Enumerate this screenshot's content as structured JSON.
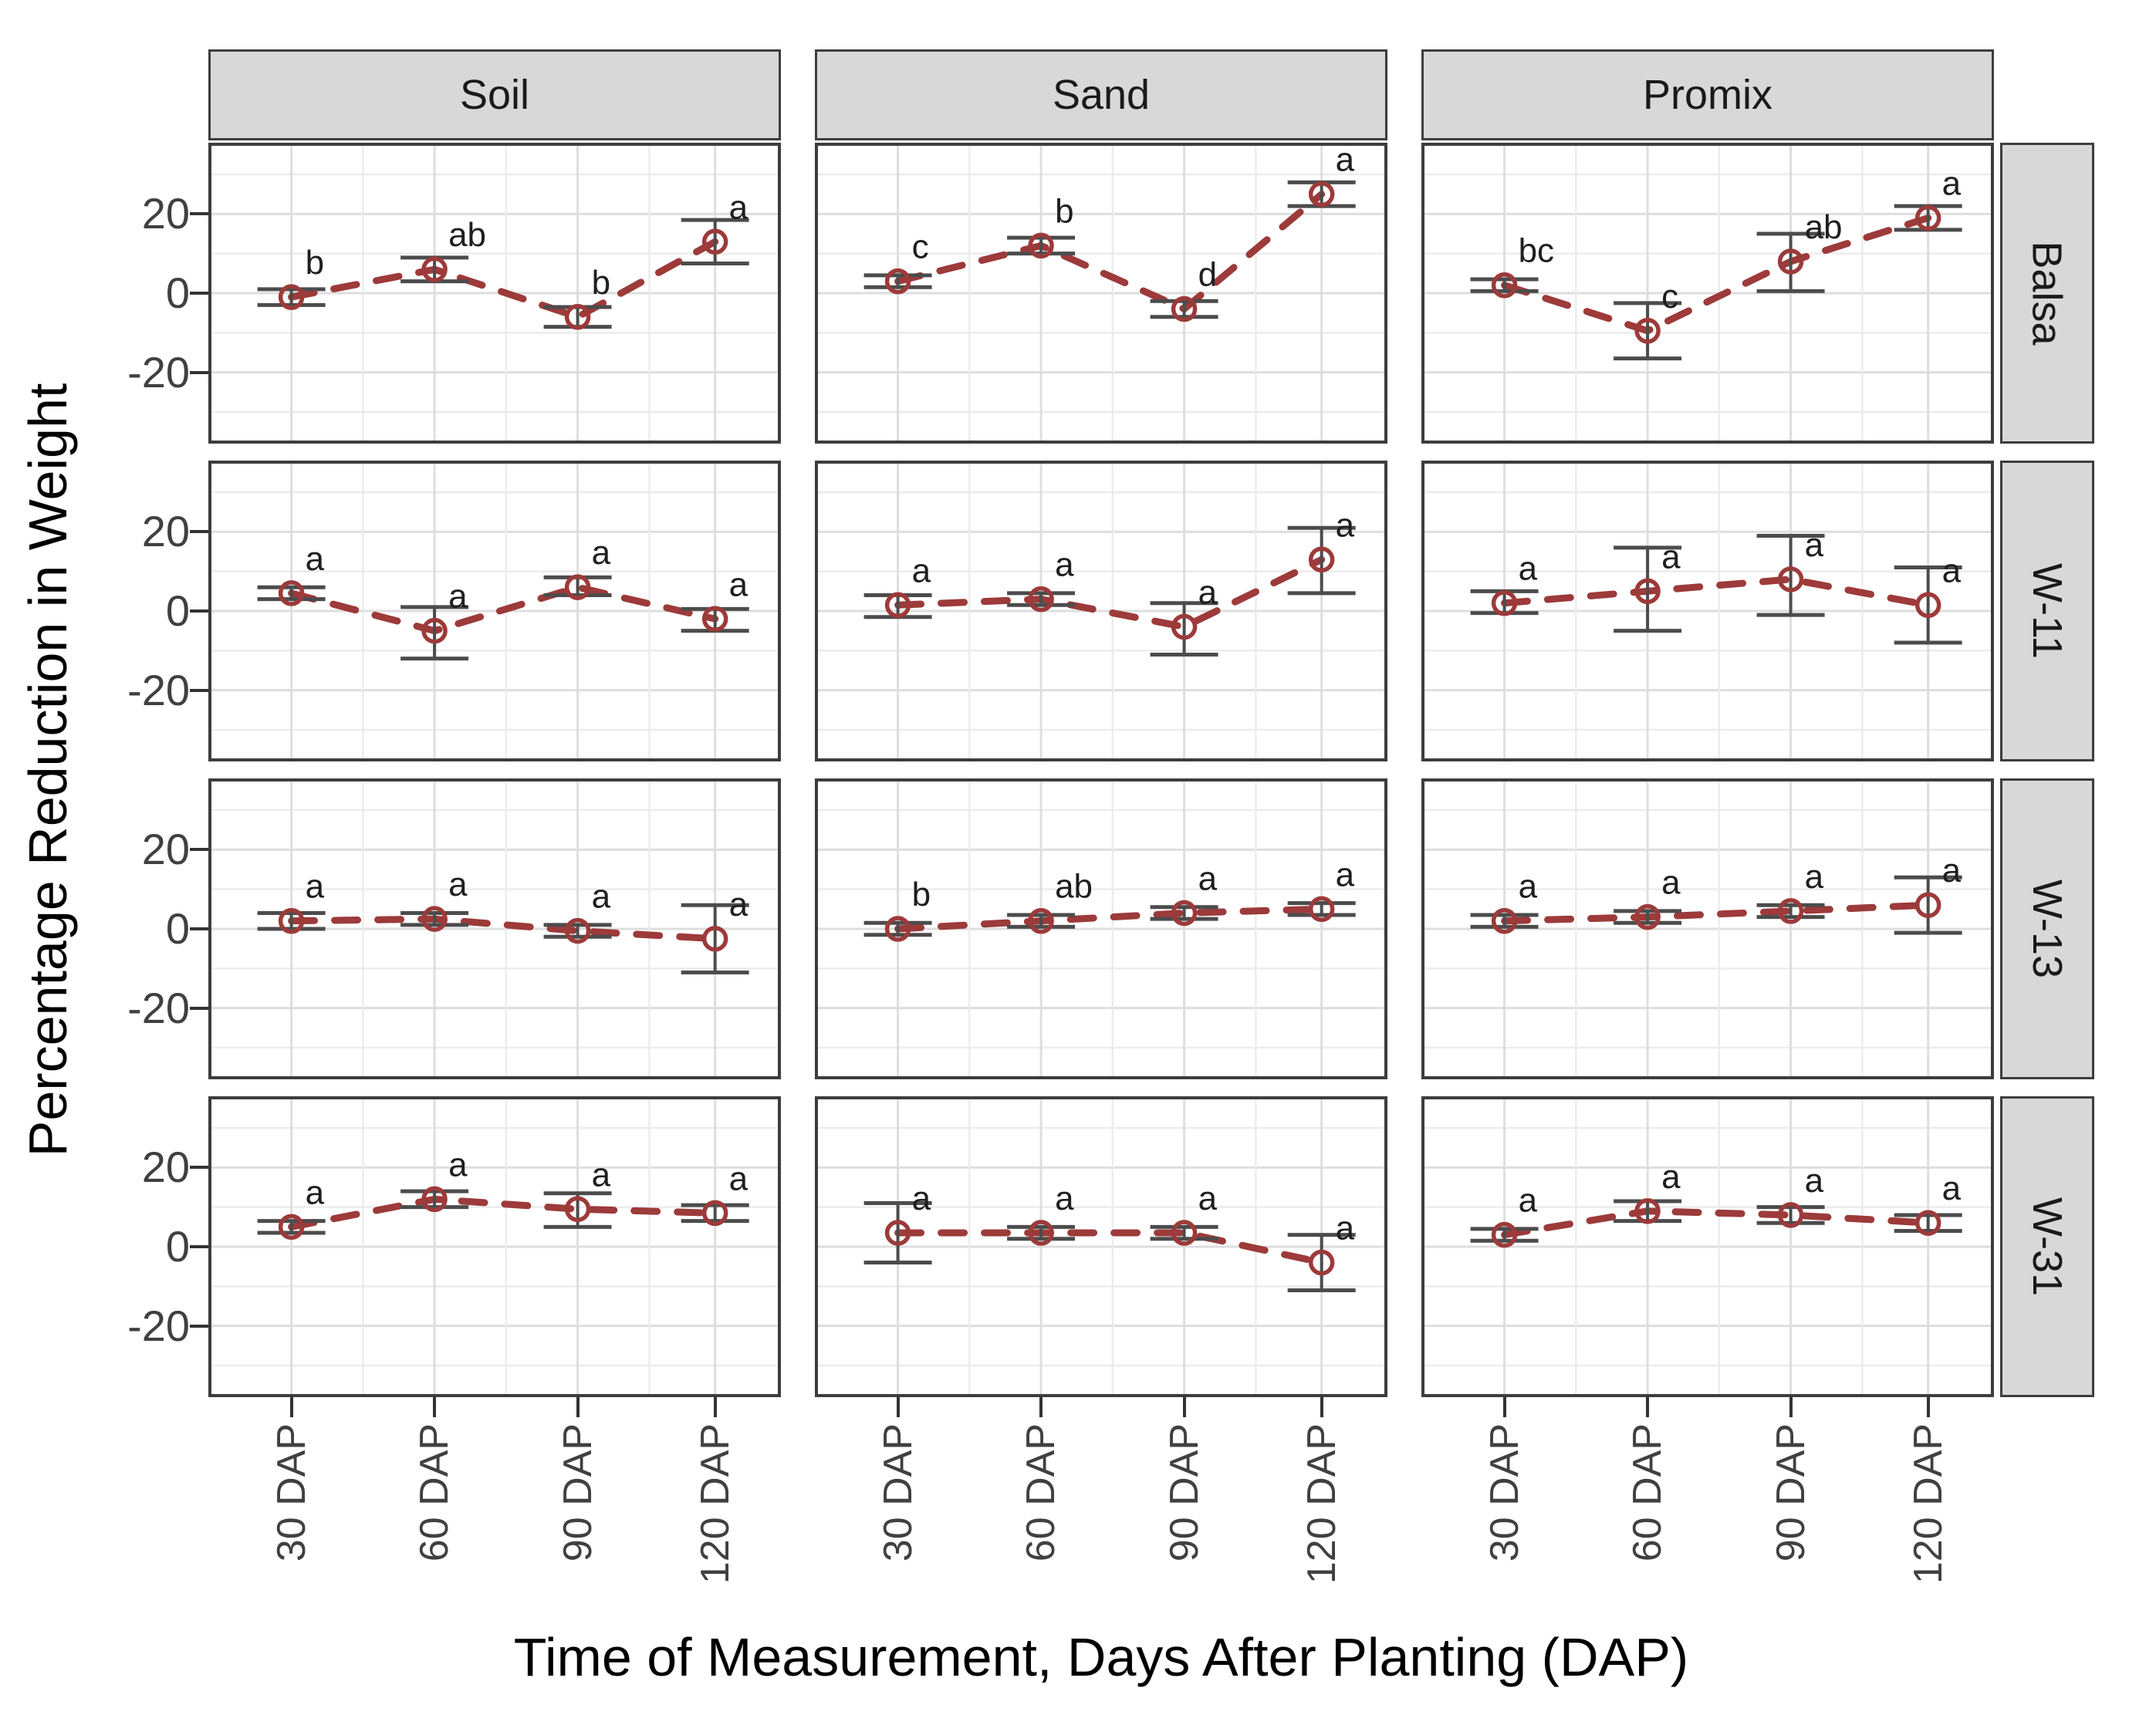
{
  "chart_data": {
    "type": "line",
    "title": "",
    "xlabel": "Time of Measurement, Days After Planting (DAP)",
    "ylabel": "Percentage Reduction in Weight",
    "facet_columns": [
      "Soil",
      "Sand",
      "Promix"
    ],
    "facet_rows": [
      "Balsa",
      "W-11",
      "W-13",
      "W-31"
    ],
    "x_categories": [
      "30 DAP",
      "60 DAP",
      "90 DAP",
      "120 DAP"
    ],
    "y_ticks": [
      20,
      0,
      -20
    ],
    "ylim": [
      -38,
      38
    ],
    "grid": "on",
    "legend": "none",
    "style": {
      "line_color": "#9d3a3a",
      "line_style": "dashed",
      "marker": "open-circle",
      "errorbar_color": "#4c4c4c",
      "strip_background": "#d8d8d8",
      "panel_border": "#3d3d3d",
      "gridline_color": "#dedede",
      "letter_color": "#1f1f1f"
    },
    "panels": [
      {
        "row": "Balsa",
        "col": "Soil",
        "points": [
          {
            "x": "30 DAP",
            "y": -1,
            "lo": -3,
            "hi": 1,
            "letter": "b"
          },
          {
            "x": "60 DAP",
            "y": 6,
            "lo": 3,
            "hi": 9,
            "letter": "ab"
          },
          {
            "x": "90 DAP",
            "y": -6,
            "lo": -8.5,
            "hi": -3.5,
            "letter": "b"
          },
          {
            "x": "120 DAP",
            "y": 13,
            "lo": 7.5,
            "hi": 18.5,
            "letter": "a"
          }
        ]
      },
      {
        "row": "Balsa",
        "col": "Sand",
        "points": [
          {
            "x": "30 DAP",
            "y": 3,
            "lo": 1.5,
            "hi": 4.5,
            "letter": "c"
          },
          {
            "x": "60 DAP",
            "y": 12,
            "lo": 10,
            "hi": 14,
            "letter": "b"
          },
          {
            "x": "90 DAP",
            "y": -4,
            "lo": -6,
            "hi": -2,
            "letter": "d"
          },
          {
            "x": "120 DAP",
            "y": 25,
            "lo": 22,
            "hi": 28,
            "letter": "a"
          }
        ]
      },
      {
        "row": "Balsa",
        "col": "Promix",
        "points": [
          {
            "x": "30 DAP",
            "y": 2,
            "lo": 0.5,
            "hi": 3.5,
            "letter": "bc"
          },
          {
            "x": "60 DAP",
            "y": -9.5,
            "lo": -16.5,
            "hi": -2.5,
            "letter": "c"
          },
          {
            "x": "90 DAP",
            "y": 8,
            "lo": 0.5,
            "hi": 15,
            "letter": "ab"
          },
          {
            "x": "120 DAP",
            "y": 19,
            "lo": 16,
            "hi": 22,
            "letter": "a"
          }
        ]
      },
      {
        "row": "W-11",
        "col": "Soil",
        "points": [
          {
            "x": "30 DAP",
            "y": 4.5,
            "lo": 3,
            "hi": 6,
            "letter": "a"
          },
          {
            "x": "60 DAP",
            "y": -5,
            "lo": -12,
            "hi": 1,
            "letter": "a"
          },
          {
            "x": "90 DAP",
            "y": 6,
            "lo": 4,
            "hi": 8.5,
            "letter": "a"
          },
          {
            "x": "120 DAP",
            "y": -2,
            "lo": -5,
            "hi": 0.5,
            "letter": "a"
          }
        ]
      },
      {
        "row": "W-11",
        "col": "Sand",
        "points": [
          {
            "x": "30 DAP",
            "y": 1.5,
            "lo": -1.5,
            "hi": 4,
            "letter": "a"
          },
          {
            "x": "60 DAP",
            "y": 3,
            "lo": 1.5,
            "hi": 4.5,
            "letter": "a"
          },
          {
            "x": "90 DAP",
            "y": -4,
            "lo": -11,
            "hi": 2,
            "letter": "a"
          },
          {
            "x": "120 DAP",
            "y": 13,
            "lo": 4.5,
            "hi": 21,
            "letter": "a"
          }
        ]
      },
      {
        "row": "W-11",
        "col": "Promix",
        "points": [
          {
            "x": "30 DAP",
            "y": 2,
            "lo": -0.5,
            "hi": 5,
            "letter": "a"
          },
          {
            "x": "60 DAP",
            "y": 5,
            "lo": -5,
            "hi": 16,
            "letter": "a"
          },
          {
            "x": "90 DAP",
            "y": 8,
            "lo": -1,
            "hi": 19,
            "letter": "a"
          },
          {
            "x": "120 DAP",
            "y": 1.5,
            "lo": -8,
            "hi": 11,
            "letter": "a"
          }
        ]
      },
      {
        "row": "W-13",
        "col": "Soil",
        "points": [
          {
            "x": "30 DAP",
            "y": 2,
            "lo": 0,
            "hi": 4,
            "letter": "a"
          },
          {
            "x": "60 DAP",
            "y": 2.5,
            "lo": 1,
            "hi": 4,
            "letter": "a"
          },
          {
            "x": "90 DAP",
            "y": -0.5,
            "lo": -2,
            "hi": 1,
            "letter": "a"
          },
          {
            "x": "120 DAP",
            "y": -2.5,
            "lo": -11,
            "hi": 6,
            "letter": "a"
          }
        ]
      },
      {
        "row": "W-13",
        "col": "Sand",
        "points": [
          {
            "x": "30 DAP",
            "y": 0,
            "lo": -1.5,
            "hi": 1.5,
            "letter": "b"
          },
          {
            "x": "60 DAP",
            "y": 2,
            "lo": 0.5,
            "hi": 3.5,
            "letter": "ab"
          },
          {
            "x": "90 DAP",
            "y": 4,
            "lo": 2.5,
            "hi": 5.5,
            "letter": "a"
          },
          {
            "x": "120 DAP",
            "y": 5,
            "lo": 3.5,
            "hi": 6.5,
            "letter": "a"
          }
        ]
      },
      {
        "row": "W-13",
        "col": "Promix",
        "points": [
          {
            "x": "30 DAP",
            "y": 2,
            "lo": 0.5,
            "hi": 3.5,
            "letter": "a"
          },
          {
            "x": "60 DAP",
            "y": 3,
            "lo": 1.5,
            "hi": 4.5,
            "letter": "a"
          },
          {
            "x": "90 DAP",
            "y": 4.5,
            "lo": 3,
            "hi": 6,
            "letter": "a"
          },
          {
            "x": "120 DAP",
            "y": 6,
            "lo": -1,
            "hi": 13,
            "letter": "a"
          }
        ]
      },
      {
        "row": "W-31",
        "col": "Soil",
        "points": [
          {
            "x": "30 DAP",
            "y": 5,
            "lo": 3.5,
            "hi": 6.5,
            "letter": "a"
          },
          {
            "x": "60 DAP",
            "y": 12,
            "lo": 10,
            "hi": 14,
            "letter": "a"
          },
          {
            "x": "90 DAP",
            "y": 9.5,
            "lo": 5,
            "hi": 13.5,
            "letter": "a"
          },
          {
            "x": "120 DAP",
            "y": 8.5,
            "lo": 6.5,
            "hi": 10.5,
            "letter": "a"
          }
        ]
      },
      {
        "row": "W-31",
        "col": "Sand",
        "points": [
          {
            "x": "30 DAP",
            "y": 3.5,
            "lo": -4,
            "hi": 11,
            "letter": "a"
          },
          {
            "x": "60 DAP",
            "y": 3.5,
            "lo": 2,
            "hi": 5,
            "letter": "a"
          },
          {
            "x": "90 DAP",
            "y": 3.5,
            "lo": 2,
            "hi": 5,
            "letter": "a"
          },
          {
            "x": "120 DAP",
            "y": -4,
            "lo": -11,
            "hi": 3,
            "letter": "a"
          }
        ]
      },
      {
        "row": "W-31",
        "col": "Promix",
        "points": [
          {
            "x": "30 DAP",
            "y": 3,
            "lo": 1.5,
            "hi": 4.5,
            "letter": "a"
          },
          {
            "x": "60 DAP",
            "y": 9,
            "lo": 6.5,
            "hi": 11.5,
            "letter": "a"
          },
          {
            "x": "90 DAP",
            "y": 8,
            "lo": 6,
            "hi": 10,
            "letter": "a"
          },
          {
            "x": "120 DAP",
            "y": 6,
            "lo": 4,
            "hi": 8,
            "letter": "a"
          }
        ]
      }
    ]
  }
}
